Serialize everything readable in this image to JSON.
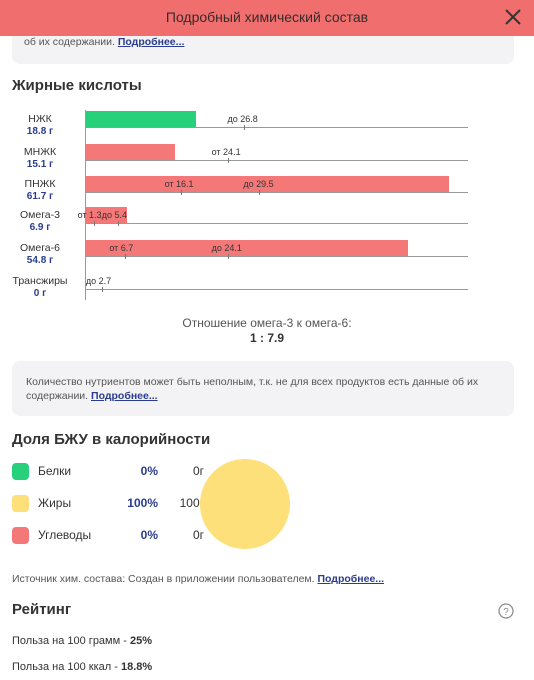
{
  "header": {
    "title": "Подробный химический состав"
  },
  "note_top": {
    "text": "об их содержании.",
    "link": "Подробнее..."
  },
  "fatty_acids": {
    "title": "Жирные кислоты",
    "rows": [
      {
        "name": "НЖК",
        "value": "18.8 г",
        "amount": 18.8,
        "color": "#27d07a",
        "limit_min": null,
        "limit_max": 26.8,
        "label_min": "",
        "label_max": "до 26.8"
      },
      {
        "name": "МНЖК",
        "value": "15.1 г",
        "amount": 15.1,
        "color": "#f57878",
        "limit_min": 24.1,
        "limit_max": null,
        "label_min": "от 24.1",
        "label_max": ""
      },
      {
        "name": "ПНЖК",
        "value": "61.7 г",
        "amount": 61.7,
        "color": "#f57878",
        "limit_min": 16.1,
        "limit_max": 29.5,
        "label_min": "от 16.1",
        "label_max": "до 29.5"
      },
      {
        "name": "Омега-3",
        "value": "6.9 г",
        "amount": 6.9,
        "color": "#f57878",
        "limit_min": 1.3,
        "limit_max": 5.4,
        "label_min": "от 1.3",
        "label_max": "до 5.4"
      },
      {
        "name": "Омега-6",
        "value": "54.8 г",
        "amount": 54.8,
        "color": "#f57878",
        "limit_min": 6.7,
        "limit_max": 24.1,
        "label_min": "от 6.7",
        "label_max": "до 24.1"
      },
      {
        "name": "Трансжиры",
        "value": "0 г",
        "amount": 0,
        "color": "#f57878",
        "limit_min": null,
        "limit_max": 2.7,
        "label_min": "",
        "label_max": "до 2.7"
      }
    ],
    "ratio_label": "Отношение омега-3 к омега-6:",
    "ratio_value": "1 : 7.9"
  },
  "note_mid": {
    "text": "Количество нутриентов может быть неполным, т.к. не для всех продуктов есть данные об их содержании.",
    "link": "Подробнее..."
  },
  "bju": {
    "title": "Доля БЖУ в калорийности",
    "items": [
      {
        "name": "Белки",
        "percent": "0%",
        "grams": "0г",
        "color": "#27d07a",
        "share": 0
      },
      {
        "name": "Жиры",
        "percent": "100%",
        "grams": "100г",
        "color": "#fde07a",
        "share": 100
      },
      {
        "name": "Углеводы",
        "percent": "0%",
        "grams": "0г",
        "color": "#f57878",
        "share": 0
      }
    ]
  },
  "source": {
    "text": "Источник хим. состава: Создан в приложении пользователем.",
    "link": "Подробнее..."
  },
  "rating": {
    "title": "Рейтинг",
    "per100g_label": "Польза на 100 грамм - ",
    "per100g_value": "25%",
    "per100kcal_label": "Польза на 100 ккал - ",
    "per100kcal_value": "18.8%"
  }
}
